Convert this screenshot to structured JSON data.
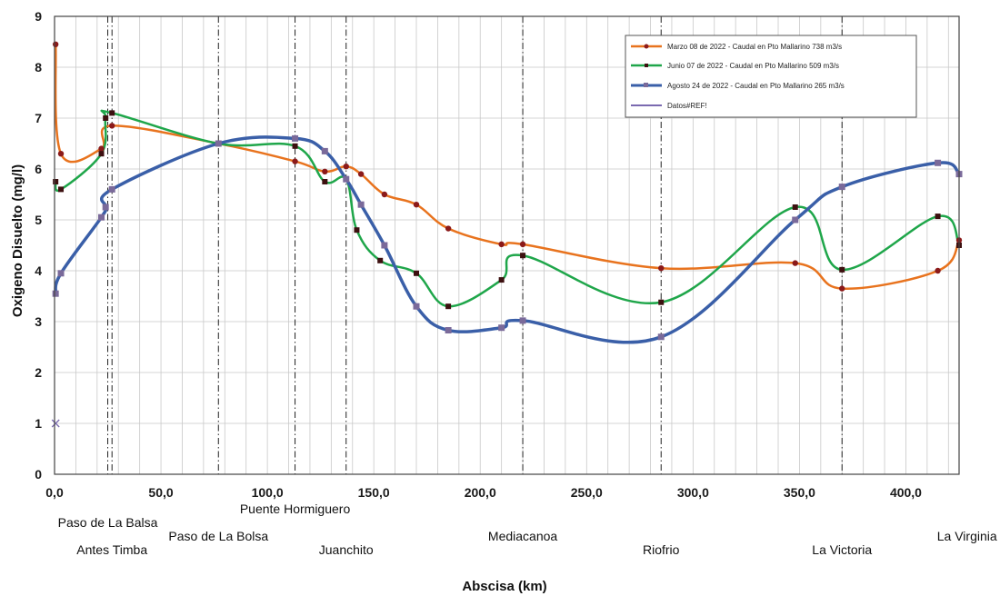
{
  "chart_data": {
    "type": "line",
    "xlabel": "Abscisa (km)",
    "ylabel": "Oxigeno Disuelto (mg/l)",
    "xlim": [
      0,
      425
    ],
    "ylim": [
      0,
      9
    ],
    "x_ticks": [
      "0,0",
      "50,0",
      "100,0",
      "150,0",
      "200,0",
      "250,0",
      "300,0",
      "350,0",
      "400,0"
    ],
    "y_ticks": [
      "0",
      "1",
      "2",
      "3",
      "4",
      "5",
      "6",
      "7",
      "8",
      "9"
    ],
    "grid": true,
    "legend_position": "top-right",
    "stations": [
      {
        "name": "Paso de La Balsa",
        "x": 25,
        "row": 1
      },
      {
        "name": "Antes Timba",
        "x": 27,
        "row": 2
      },
      {
        "name": "Paso de La Bolsa",
        "x": 77,
        "row": 1.5
      },
      {
        "name": "Puente Hormiguero",
        "x": 113,
        "row": 0.5
      },
      {
        "name": "Juanchito",
        "x": 137,
        "row": 2
      },
      {
        "name": "Mediacanoa",
        "x": 220,
        "row": 1.5
      },
      {
        "name": "Riofrio",
        "x": 285,
        "row": 2
      },
      {
        "name": "La Victoria",
        "x": 370,
        "row": 2
      },
      {
        "name": "La Virginia",
        "x": 424,
        "row": 1.5
      }
    ],
    "series": [
      {
        "name": "Marzo 08 de 2022 - Caudal en Pto Mallarino 738 m3/s",
        "color": "#e8731e",
        "marker_color": "#8b1a1a",
        "points": [
          [
            0.5,
            8.45
          ],
          [
            3,
            6.3
          ],
          [
            22,
            6.4
          ],
          [
            27,
            6.85
          ],
          [
            77,
            6.5
          ],
          [
            113,
            6.15
          ],
          [
            127,
            5.95
          ],
          [
            137,
            6.05
          ],
          [
            144,
            5.9
          ],
          [
            155,
            5.5
          ],
          [
            170,
            5.3
          ],
          [
            185,
            4.83
          ],
          [
            210,
            4.52
          ],
          [
            220,
            4.52
          ],
          [
            285,
            4.05
          ],
          [
            348,
            4.15
          ],
          [
            370,
            3.65
          ],
          [
            415,
            4.0
          ],
          [
            425,
            4.6
          ]
        ]
      },
      {
        "name": "Junio 07 de 2022 - Caudal en Pto Mallarino 509 m3/s",
        "color": "#1fa64a",
        "marker_color": "#3d1010",
        "points": [
          [
            0.5,
            5.75
          ],
          [
            3,
            5.6
          ],
          [
            22,
            6.3
          ],
          [
            24,
            7.0
          ],
          [
            27,
            7.1
          ],
          [
            77,
            6.5
          ],
          [
            113,
            6.45
          ],
          [
            127,
            5.75
          ],
          [
            137,
            5.8
          ],
          [
            142,
            4.8
          ],
          [
            153,
            4.2
          ],
          [
            170,
            3.95
          ],
          [
            185,
            3.3
          ],
          [
            210,
            3.82
          ],
          [
            220,
            4.3
          ],
          [
            285,
            3.38
          ],
          [
            348,
            5.25
          ],
          [
            370,
            4.02
          ],
          [
            415,
            5.07
          ],
          [
            425,
            4.5
          ]
        ]
      },
      {
        "name": "Agosto 24 de 2022 - Caudal en Pto Mallarino 265 m3/s",
        "color": "#3a5fa8",
        "marker_color": "#7a6a9a",
        "points": [
          [
            0.5,
            3.55
          ],
          [
            3,
            3.95
          ],
          [
            22,
            5.05
          ],
          [
            24,
            5.25
          ],
          [
            27,
            5.6
          ],
          [
            77,
            6.5
          ],
          [
            113,
            6.6
          ],
          [
            127,
            6.35
          ],
          [
            137,
            5.8
          ],
          [
            144,
            5.3
          ],
          [
            155,
            4.5
          ],
          [
            170,
            3.3
          ],
          [
            185,
            2.83
          ],
          [
            210,
            2.88
          ],
          [
            220,
            3.02
          ],
          [
            285,
            2.7
          ],
          [
            348,
            5.0
          ],
          [
            370,
            5.65
          ],
          [
            415,
            6.12
          ],
          [
            425,
            5.9
          ]
        ]
      },
      {
        "name": "Datos#REF!",
        "color": "#7a6ab0",
        "marker_color": "#7a6ab0",
        "points": [
          [
            0.5,
            1.0
          ]
        ]
      }
    ]
  }
}
